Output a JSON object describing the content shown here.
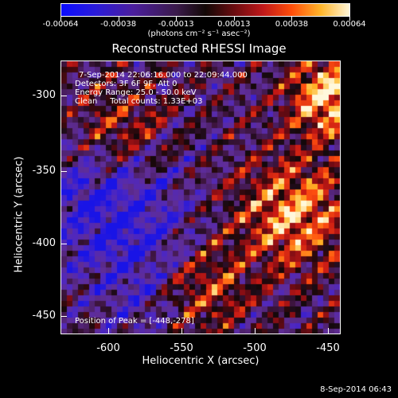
{
  "colorbar": {
    "ticks": [
      "-0.00064",
      "-0.00038",
      "-0.00013",
      "0.00013",
      "0.00038",
      "0.00064"
    ],
    "unit_label": "(photons cm⁻² s⁻¹ asec⁻²)"
  },
  "title": "Reconstructed RHESSI Image",
  "info": {
    "time_range": "7-Sep-2014 22:06:16.000 to 22:09:44.000",
    "detectors": "Detectors: 3F 6F 9F, Att 0",
    "energy_range": "Energy Range: 25.0 - 50.0 keV",
    "clean_counts": "Clean     Total counts: 1.33E+03",
    "peak": "Position of Peak = [-448,-278]"
  },
  "axes": {
    "xlabel": "Heliocentric X (arcsec)",
    "ylabel": "Heliocentric Y (arcsec)",
    "xticks": [
      "-600",
      "-550",
      "-500",
      "-450"
    ],
    "yticks": [
      "-300",
      "-350",
      "-400",
      "-450"
    ]
  },
  "timestamp": "8-Sep-2014 06:43",
  "palette": {
    "bg": "#000000",
    "low": "#0b0cff",
    "mid": "#120806",
    "high": "#fff6d8"
  }
}
